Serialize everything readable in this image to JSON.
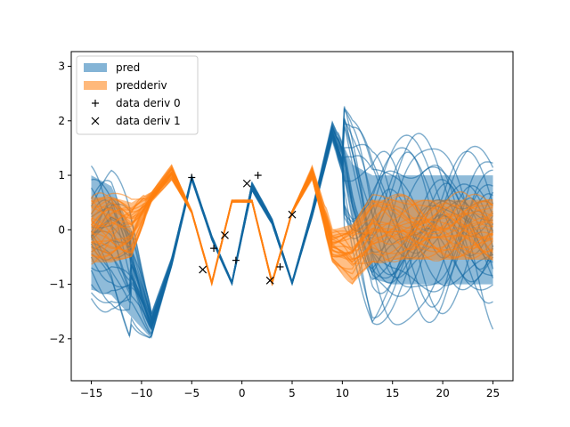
{
  "chart_data": {
    "type": "line",
    "title": "",
    "xlabel": "",
    "ylabel": "",
    "xlim": [
      -17,
      27
    ],
    "ylim": [
      -2.77,
      3.27
    ],
    "xticks": [
      -15,
      -10,
      -5,
      0,
      5,
      10,
      15,
      20,
      25
    ],
    "xtick_labels": [
      "−15",
      "−10",
      "−5",
      "0",
      "5",
      "10",
      "15",
      "20",
      "25"
    ],
    "yticks": [
      -2,
      -1,
      0,
      1,
      2,
      3
    ],
    "ytick_labels": [
      "−2",
      "−1",
      "0",
      "1",
      "2",
      "3"
    ],
    "grid": false,
    "legend_position": "upper-left",
    "legend": [
      {
        "label": "pred",
        "marker": "patch",
        "color": "#1f77b4"
      },
      {
        "label": "predderiv",
        "marker": "patch",
        "color": "#ff7f0e"
      },
      {
        "label": "data deriv 0",
        "marker": "+",
        "color": "#000000"
      },
      {
        "label": "data deriv 1",
        "marker": "x",
        "color": "#000000"
      }
    ],
    "colors": {
      "pred": "#1f77b4",
      "predderiv": "#ff7f0e",
      "pred_samples": "#1368a3",
      "deriv_samples": "#ff7f0e"
    },
    "series": [
      {
        "name": "pred",
        "kind": "band",
        "x": [
          -15,
          -13,
          -11,
          -9,
          -7,
          -5,
          -3,
          -1,
          1,
          3,
          5,
          7,
          9,
          11,
          13,
          15,
          17,
          19,
          21,
          23,
          25
        ],
        "lower": [
          -1.1,
          -1.2,
          -1.6,
          -2.0,
          -0.7,
          0.9,
          -0.2,
          -1.0,
          0.7,
          0.1,
          -1.0,
          0.2,
          1.6,
          0.4,
          -0.9,
          -1.0,
          -1.0,
          -1.0,
          -1.0,
          -1.0,
          -1.0
        ],
        "upper": [
          1.0,
          0.8,
          0.0,
          -1.5,
          -0.5,
          1.0,
          -0.1,
          -0.95,
          0.9,
          0.2,
          -0.95,
          0.4,
          2.0,
          1.2,
          1.0,
          1.0,
          1.0,
          1.0,
          1.0,
          1.0,
          1.0
        ]
      },
      {
        "name": "predderiv",
        "kind": "band",
        "x": [
          -15,
          -13,
          -11,
          -9,
          -7,
          -5,
          -3,
          -1,
          1,
          3,
          5,
          7,
          9,
          11,
          13,
          15,
          17,
          19,
          21,
          23,
          25
        ],
        "lower": [
          -0.6,
          -0.6,
          -0.5,
          0.5,
          0.9,
          0.3,
          -1.0,
          0.5,
          0.5,
          -1.0,
          0.3,
          0.9,
          -0.6,
          -1.0,
          -0.6,
          -0.55,
          -0.55,
          -0.55,
          -0.55,
          -0.55,
          -0.55
        ],
        "upper": [
          0.6,
          0.6,
          0.5,
          0.7,
          1.2,
          0.35,
          -0.95,
          0.55,
          0.55,
          -0.95,
          0.35,
          1.2,
          0.0,
          0.1,
          0.55,
          0.55,
          0.55,
          0.55,
          0.55,
          0.55,
          0.55
        ]
      },
      {
        "name": "data deriv 0",
        "kind": "points",
        "marker": "+",
        "x": [
          -5.0,
          -2.8,
          -0.6,
          1.6,
          3.8
        ],
        "y": [
          0.96,
          -0.34,
          -0.56,
          1.0,
          -0.68
        ]
      },
      {
        "name": "data deriv 1",
        "kind": "points",
        "marker": "x",
        "x": [
          -3.9,
          -1.7,
          0.5,
          2.8,
          5.0
        ],
        "y": [
          -0.73,
          -0.1,
          0.85,
          -0.93,
          0.28
        ]
      }
    ]
  }
}
